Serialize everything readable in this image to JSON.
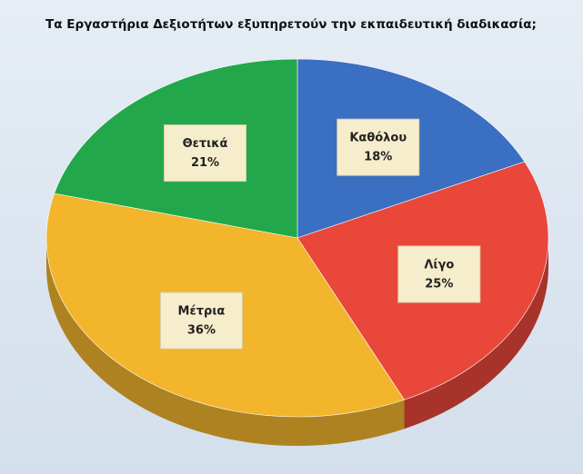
{
  "chart_data": {
    "type": "pie",
    "title": "Τα Εργαστήρια Δεξιοτήτων εξυπηρετούν την εκπαιδευτική διαδικασία;",
    "categories": [
      "Καθόλου",
      "Λίγο",
      "Μέτρια",
      "Θετικά"
    ],
    "values": [
      18,
      25,
      36,
      21
    ],
    "value_labels": [
      "18%",
      "25%",
      "36%",
      "21%"
    ],
    "colors": [
      "#3a6fc1",
      "#e8473a",
      "#f2b52c",
      "#22a84a"
    ]
  }
}
